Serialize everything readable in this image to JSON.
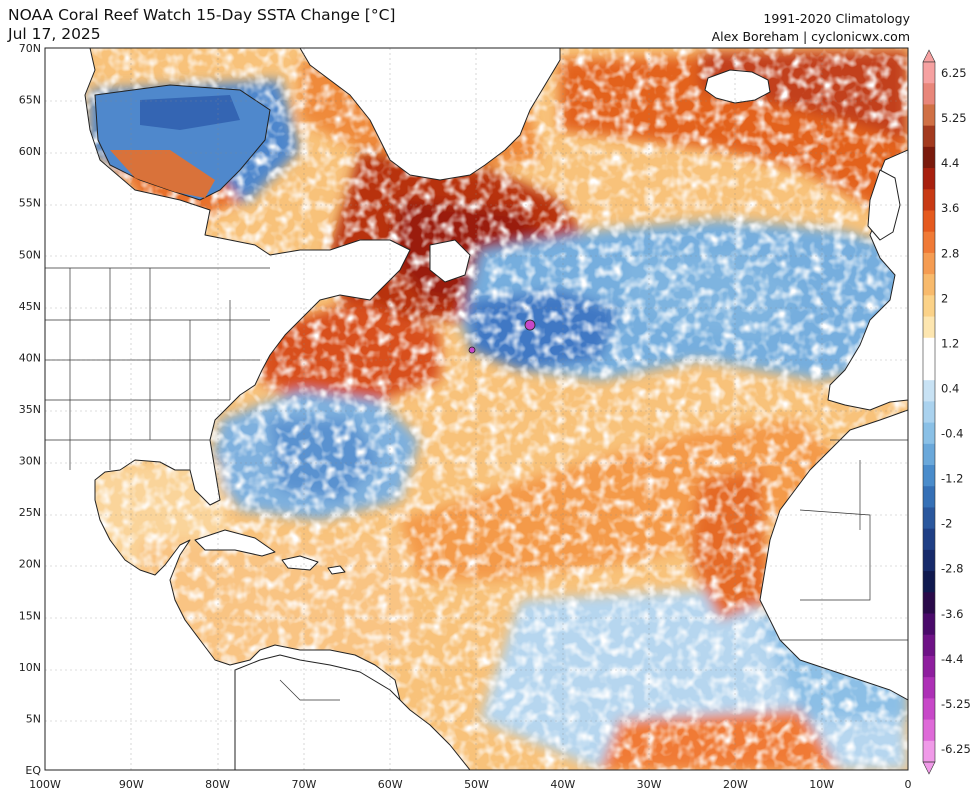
{
  "header": {
    "title": "NOAA Coral Reef Watch 15-Day SSTA Change [°C]",
    "date": "Jul 17, 2025",
    "climatology": "1991-2020 Climatology",
    "credit": "Alex Boreham | cyclonicwx.com"
  },
  "axes": {
    "lat_labels": [
      "70N",
      "65N",
      "60N",
      "55N",
      "50N",
      "45N",
      "40N",
      "35N",
      "30N",
      "25N",
      "20N",
      "15N",
      "10N",
      "5N",
      "EQ"
    ],
    "lon_labels": [
      "100W",
      "90W",
      "80W",
      "70W",
      "60W",
      "50W",
      "40W",
      "30W",
      "20W",
      "10W",
      "0"
    ]
  },
  "colorbar": {
    "labels": [
      "6.25",
      "5.25",
      "4.4",
      "3.6",
      "2.8",
      "2",
      "1.2",
      "0.4",
      "-0.4",
      "-1.2",
      "-2",
      "-2.8",
      "-3.6",
      "-4.4",
      "-5.25",
      "-6.25"
    ],
    "colors": [
      "#f6a1a1",
      "#e8867a",
      "#d07045",
      "#a33a1e",
      "#7a1a0c",
      "#a8200e",
      "#c83a14",
      "#e55a1e",
      "#f07a36",
      "#f59c52",
      "#f8ba6c",
      "#fbd288",
      "#fde6b0",
      "#ffffff",
      "#ffffff",
      "#c8e2f4",
      "#aad2ee",
      "#8ac0e6",
      "#6aa8da",
      "#4a8ccb",
      "#3570b6",
      "#2a579d",
      "#1f3f85",
      "#162a6a",
      "#10194f",
      "#2a0a4a",
      "#4a0a6a",
      "#6e1286",
      "#8e1e9e",
      "#ad30b6",
      "#c748c8",
      "#de6ad8",
      "#f09ae8"
    ]
  },
  "map": {
    "region": "North Atlantic",
    "colors": {
      "warm_light": "#f8bf6c",
      "warm_mid": "#f08a3c",
      "warm_strong": "#d24a16",
      "warm_extreme": "#9a1e0c",
      "cool_light": "#b9dbf2",
      "cool_mid": "#6ea9dc",
      "cool_strong": "#3a72c0",
      "cool_extreme": "#1c3a8c",
      "extreme_neg": "#d04ac8",
      "land": "#ffffff",
      "coastline": "#222222"
    }
  }
}
